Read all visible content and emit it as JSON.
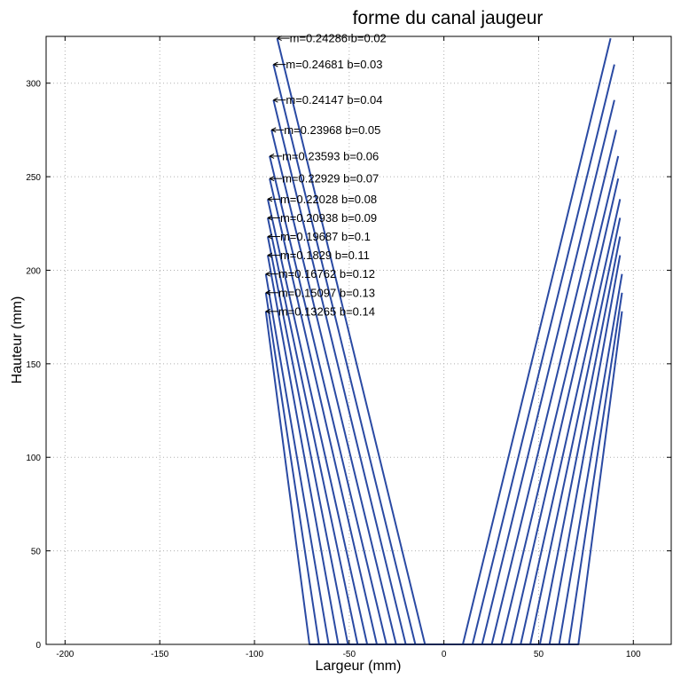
{
  "chart_data": {
    "type": "line",
    "title": "forme du canal jaugeur",
    "xlabel": "Largeur (mm)",
    "ylabel": "Hauteur (mm)",
    "xlim": [
      -210,
      120
    ],
    "ylim": [
      0,
      325
    ],
    "xticks": [
      -200,
      -150,
      -100,
      -50,
      0,
      50,
      100
    ],
    "yticks": [
      0,
      50,
      100,
      150,
      200,
      250,
      300
    ],
    "grid": true,
    "line_color": "#2a4aa3",
    "half_bottom_width": 10,
    "series": [
      {
        "m": "0.24286",
        "b": "0.02",
        "annotation": "m=0.24286 b=0.02",
        "top_x": 88,
        "top_y": 324
      },
      {
        "m": "0.24681",
        "b": "0.03",
        "annotation": "m=0.24681 b=0.03",
        "top_x": 90,
        "top_y": 310
      },
      {
        "m": "0.24147",
        "b": "0.04",
        "annotation": "m=0.24147 b=0.04",
        "top_x": 90,
        "top_y": 291
      },
      {
        "m": "0.23968",
        "b": "0.05",
        "annotation": "m=0.23968 b=0.05",
        "top_x": 91,
        "top_y": 275
      },
      {
        "m": "0.23593",
        "b": "0.06",
        "annotation": "m=0.23593 b=0.06",
        "top_x": 92,
        "top_y": 261
      },
      {
        "m": "0.22929",
        "b": "0.07",
        "annotation": "m=0.22929 b=0.07",
        "top_x": 92,
        "top_y": 249
      },
      {
        "m": "0.22028",
        "b": "0.08",
        "annotation": "m=0.22028 b=0.08",
        "top_x": 93,
        "top_y": 238
      },
      {
        "m": "0.20938",
        "b": "0.09",
        "annotation": "m=0.20938 b=0.09",
        "top_x": 93,
        "top_y": 228
      },
      {
        "m": "0.19687",
        "b": "0.1",
        "annotation": "m=0.19687 b=0.1",
        "top_x": 93,
        "top_y": 218
      },
      {
        "m": "0.1829",
        "b": "0.11",
        "annotation": "m=0.1829 b=0.11",
        "top_x": 93,
        "top_y": 208
      },
      {
        "m": "0.16762",
        "b": "0.12",
        "annotation": "m=0.16762 b=0.12",
        "top_x": 94,
        "top_y": 198
      },
      {
        "m": "0.15097",
        "b": "0.13",
        "annotation": "m=0.15097 b=0.13",
        "top_x": 94,
        "top_y": 188
      },
      {
        "m": "0.13265",
        "b": "0.14",
        "annotation": "m=0.13265 b=0.14",
        "top_x": 94,
        "top_y": 178
      }
    ]
  }
}
